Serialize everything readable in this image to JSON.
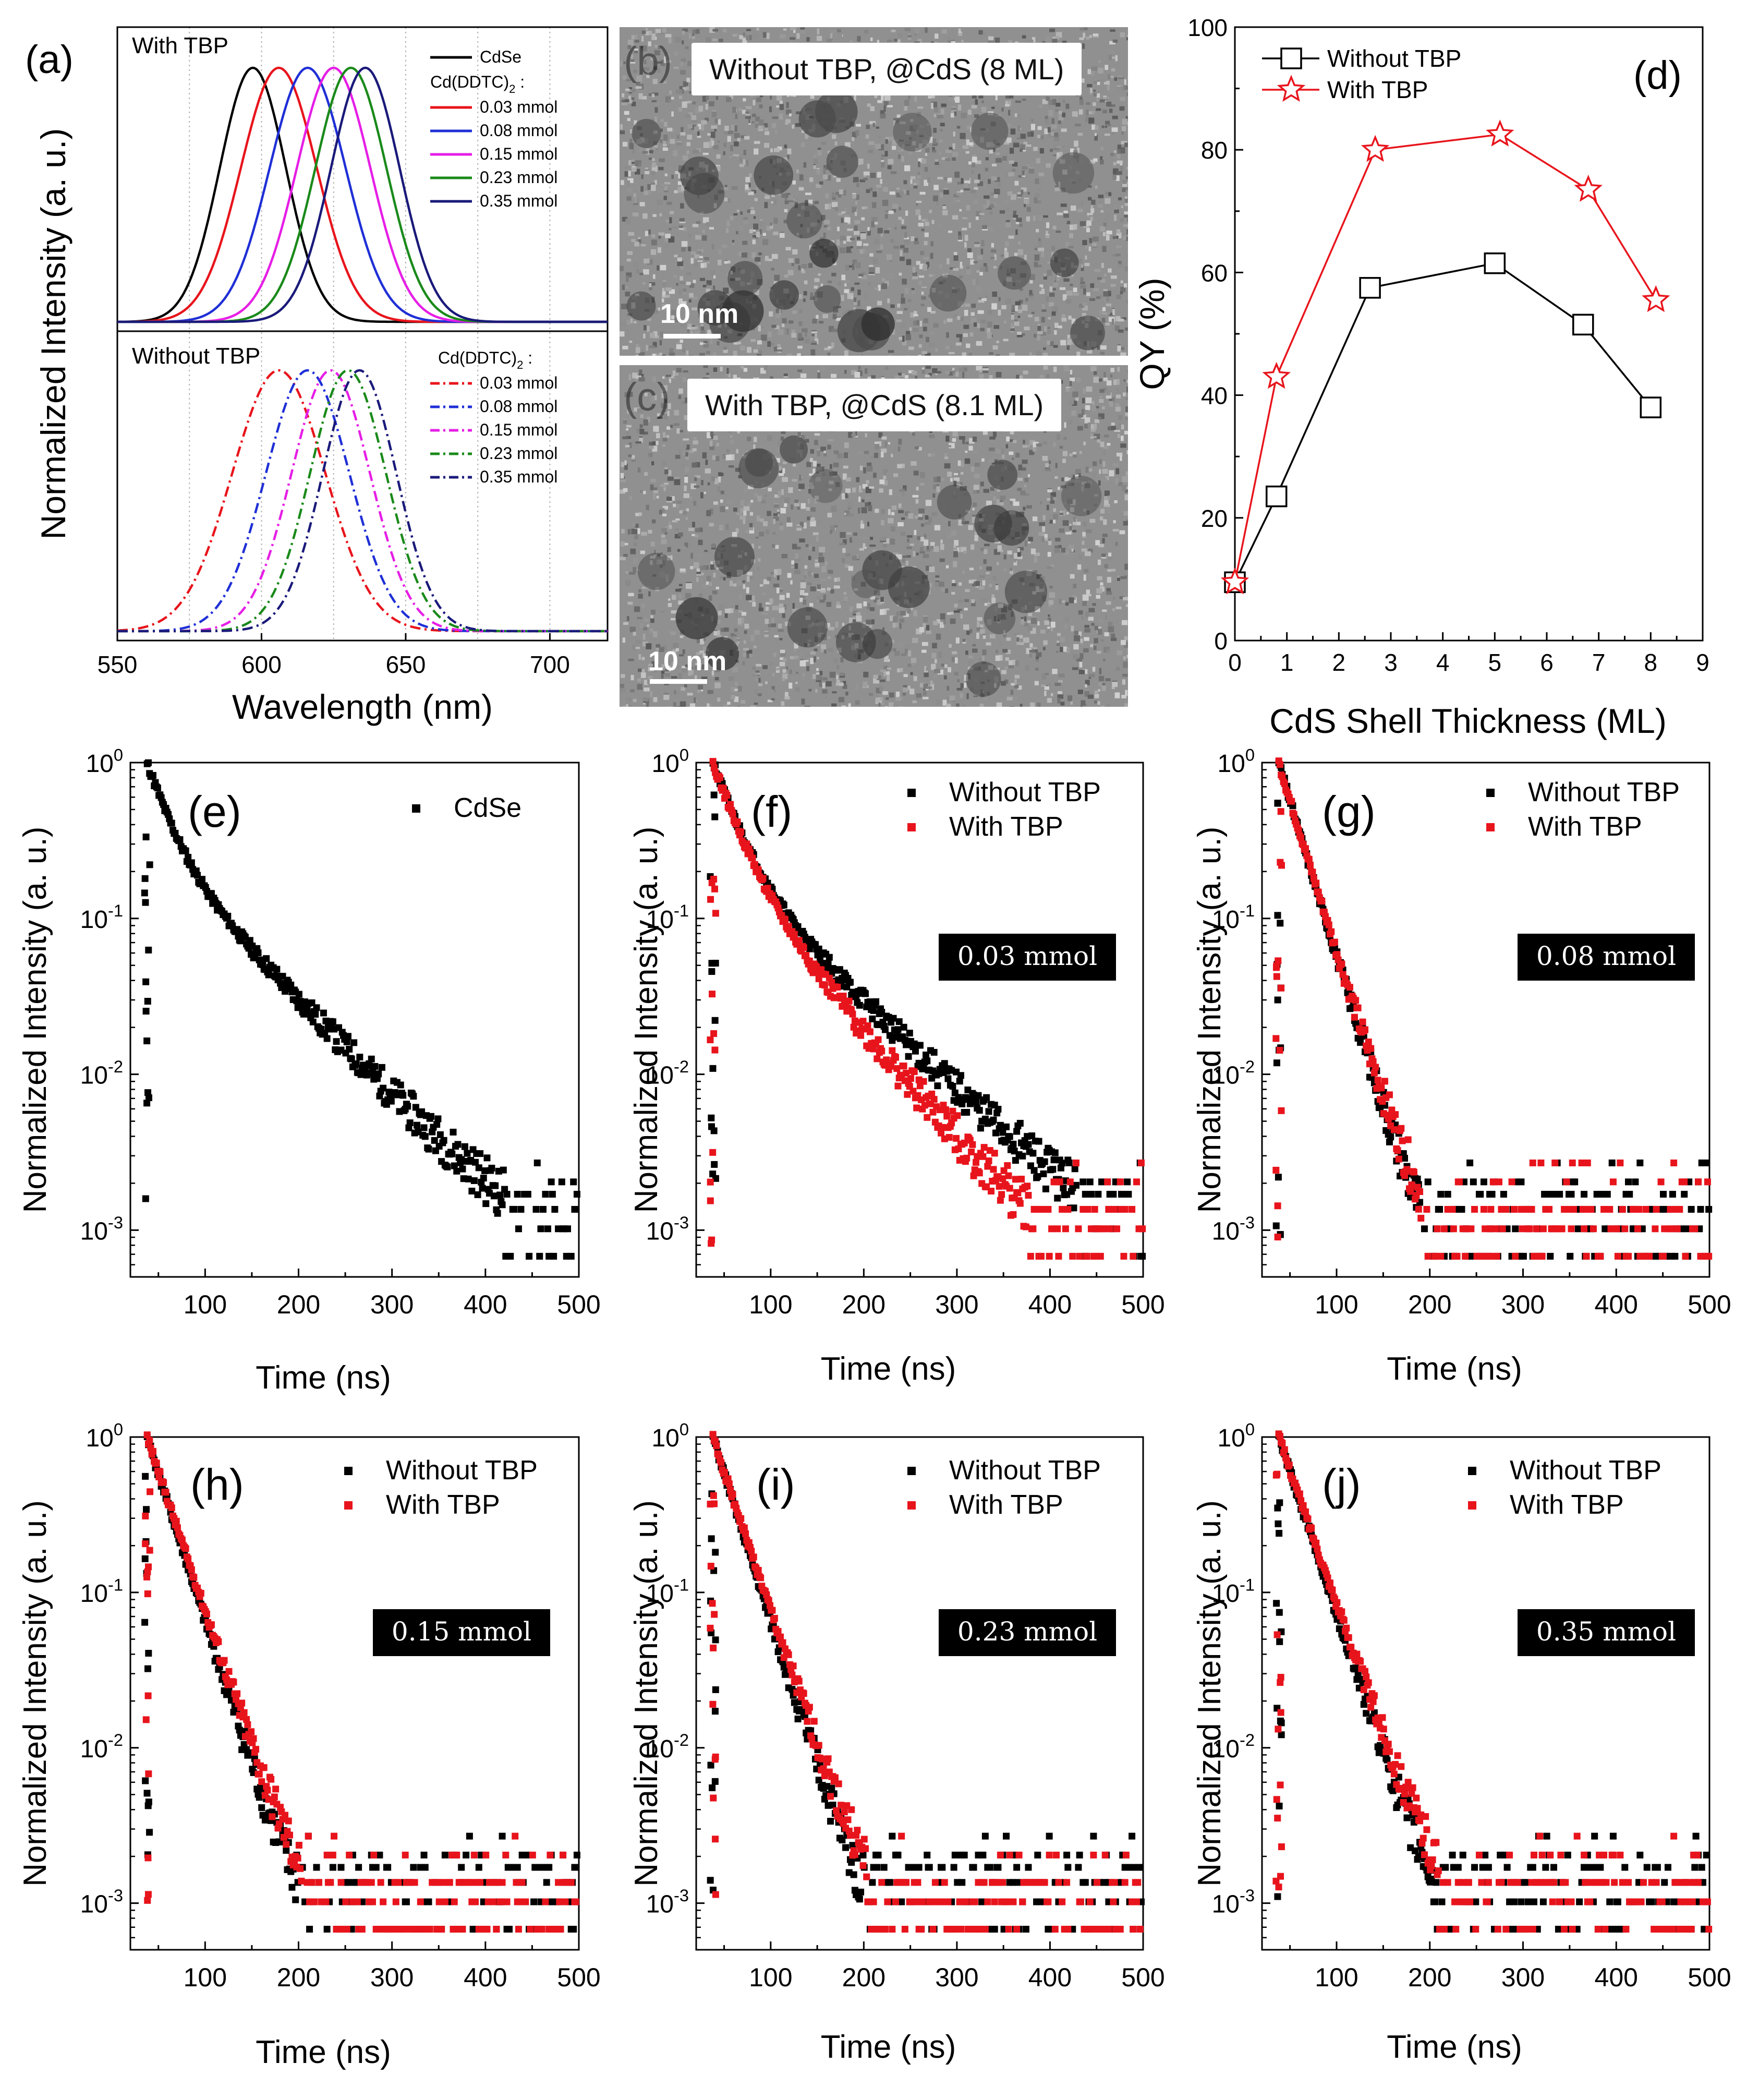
{
  "panels": {
    "b": {
      "letter": "(b)",
      "caption": "Without TBP, @CdS (8 ML)",
      "scale_bar": "10 nm"
    },
    "c": {
      "letter": "(c)",
      "caption": "With TBP, @CdS (8.1 ML)",
      "scale_bar": "10 nm"
    }
  },
  "colors": {
    "cdse": "#000000",
    "c003": "#e8141c",
    "c008": "#1f2fd6",
    "c015": "#e61ee6",
    "c023": "#1a8a1a",
    "c035": "#1a1a7a",
    "without": "#000000",
    "with": "#e8141c"
  },
  "chart_data": [
    {
      "id": "a",
      "type": "line",
      "panel_label": "(a)",
      "ylabel": "Normalized Intensity (a. u.)",
      "xlabel": "Wavelength (nm)",
      "xlim": [
        550,
        720
      ],
      "xticks": [
        550,
        600,
        650,
        700
      ],
      "subplots": [
        {
          "label": "With TBP",
          "legend_header": "Cd(DDTC)",
          "legend_header_sub": "2",
          "legend_header_suffix": " :",
          "series": [
            {
              "name": "CdSe",
              "peak": 597,
              "fwhm": 27,
              "style": "solid",
              "color_key": "cdse",
              "in_legend_top": true
            },
            {
              "name": "0.03 mmol",
              "peak": 606,
              "fwhm": 31,
              "style": "solid",
              "color_key": "c003"
            },
            {
              "name": "0.08 mmol",
              "peak": 616,
              "fwhm": 31,
              "style": "solid",
              "color_key": "c008"
            },
            {
              "name": "0.15 mmol",
              "peak": 625,
              "fwhm": 30,
              "style": "solid",
              "color_key": "c015"
            },
            {
              "name": "0.23 mmol",
              "peak": 631,
              "fwhm": 29,
              "style": "solid",
              "color_key": "c023"
            },
            {
              "name": "0.35 mmol",
              "peak": 636,
              "fwhm": 28,
              "style": "solid",
              "color_key": "c035"
            }
          ]
        },
        {
          "label": "Without TBP",
          "legend_header": "Cd(DDTC)",
          "legend_header_sub": "2",
          "legend_header_suffix": " :",
          "series": [
            {
              "name": "0.03 mmol",
              "peak": 606,
              "fwhm": 38,
              "style": "dashdot",
              "color_key": "c003"
            },
            {
              "name": "0.08 mmol",
              "peak": 616,
              "fwhm": 34,
              "style": "dashdot",
              "color_key": "c008"
            },
            {
              "name": "0.15 mmol",
              "peak": 624,
              "fwhm": 32,
              "style": "dashdot",
              "color_key": "c015"
            },
            {
              "name": "0.23 mmol",
              "peak": 630,
              "fwhm": 31,
              "style": "dashdot",
              "color_key": "c023"
            },
            {
              "name": "0.35 mmol",
              "peak": 634,
              "fwhm": 30,
              "style": "dashdot",
              "color_key": "c035"
            }
          ]
        }
      ]
    },
    {
      "id": "d",
      "type": "line",
      "panel_label": "(d)",
      "xlabel": "CdS Shell Thickness (ML)",
      "ylabel": "QY (%)",
      "xlim": [
        0,
        9
      ],
      "ylim": [
        0,
        100
      ],
      "xticks": [
        0,
        1,
        2,
        3,
        4,
        5,
        6,
        7,
        8,
        9
      ],
      "yticks": [
        0,
        20,
        40,
        60,
        80,
        100
      ],
      "series": [
        {
          "name": "Without TBP",
          "marker": "square",
          "color_key": "without",
          "x": [
            0,
            0.8,
            2.6,
            5.0,
            6.7,
            8.0
          ],
          "y": [
            9.5,
            23.5,
            57.5,
            61.5,
            51.5,
            38.0
          ]
        },
        {
          "name": "With TBP",
          "marker": "star",
          "color_key": "with",
          "x": [
            0,
            0.8,
            2.7,
            5.1,
            6.8,
            8.1
          ],
          "y": [
            9.5,
            43.0,
            80.0,
            82.5,
            73.5,
            55.5
          ]
        }
      ]
    },
    {
      "id": "e",
      "type": "scatter",
      "panel_label": "(e)",
      "xlabel": "Time (ns)",
      "ylabel": "Normalized Intensity (a. u.)",
      "xlim": [
        20,
        500
      ],
      "ylim_log10": [
        -3.3,
        0
      ],
      "xticks": [
        100,
        200,
        300,
        400,
        500
      ],
      "yticks": [
        {
          "base": "10",
          "exp": "0",
          "v": 0
        },
        {
          "base": "10",
          "exp": "-1",
          "v": -1
        },
        {
          "base": "10",
          "exp": "-2",
          "v": -2
        },
        {
          "base": "10",
          "exp": "-3",
          "v": -3
        }
      ],
      "box_label": "",
      "series": [
        {
          "name": "CdSe",
          "color_key": "without",
          "tau1": 20,
          "tau2": 70,
          "a1": 0.7,
          "floor": 0.0012,
          "seed": 11
        }
      ]
    },
    {
      "id": "f",
      "type": "scatter",
      "panel_label": "(f)",
      "xlabel": "Time (ns)",
      "ylabel": "Normalized Intensity (a. u.)",
      "xlim": [
        20,
        500
      ],
      "ylim_log10": [
        -3.3,
        0
      ],
      "xticks": [
        100,
        200,
        300,
        400,
        500
      ],
      "yticks": [
        {
          "base": "10",
          "exp": "0",
          "v": 0
        },
        {
          "base": "10",
          "exp": "-1",
          "v": -1
        },
        {
          "base": "10",
          "exp": "-2",
          "v": -2
        },
        {
          "base": "10",
          "exp": "-3",
          "v": -3
        }
      ],
      "box_label": "0.03 mmol",
      "series": [
        {
          "name": "Without TBP",
          "color_key": "without",
          "tau1": 22,
          "tau2": 75,
          "a1": 0.75,
          "floor": 0.0013,
          "seed": 21
        },
        {
          "name": "With TBP",
          "color_key": "with",
          "tau1": 22,
          "tau2": 62,
          "a1": 0.75,
          "floor": 0.001,
          "seed": 22
        }
      ]
    },
    {
      "id": "g",
      "type": "scatter",
      "panel_label": "(g)",
      "xlabel": "Time (ns)",
      "ylabel": "Normalized Intensity (a. u.)",
      "xlim": [
        20,
        500
      ],
      "ylim_log10": [
        -3.3,
        0
      ],
      "xticks": [
        100,
        200,
        300,
        400,
        500
      ],
      "yticks": [
        {
          "base": "10",
          "exp": "0",
          "v": 0
        },
        {
          "base": "10",
          "exp": "-1",
          "v": -1
        },
        {
          "base": "10",
          "exp": "-2",
          "v": -2
        },
        {
          "base": "10",
          "exp": "-3",
          "v": -3
        }
      ],
      "box_label": "0.08 mmol",
      "series": [
        {
          "name": "Without TBP",
          "color_key": "without",
          "tau1": 19,
          "tau2": 24,
          "a1": 0.5,
          "floor": 0.001,
          "seed": 31
        },
        {
          "name": "With TBP",
          "color_key": "with",
          "tau1": 19,
          "tau2": 25,
          "a1": 0.5,
          "floor": 0.0012,
          "seed": 32
        }
      ]
    },
    {
      "id": "h",
      "type": "scatter",
      "panel_label": "(h)",
      "xlabel": "Time (ns)",
      "ylabel": "Normalized Intensity (a. u.)",
      "xlim": [
        20,
        500
      ],
      "ylim_log10": [
        -3.3,
        0
      ],
      "xticks": [
        100,
        200,
        300,
        400,
        500
      ],
      "yticks": [
        {
          "base": "10",
          "exp": "0",
          "v": 0
        },
        {
          "base": "10",
          "exp": "-1",
          "v": -1
        },
        {
          "base": "10",
          "exp": "-2",
          "v": -2
        },
        {
          "base": "10",
          "exp": "-3",
          "v": -3
        }
      ],
      "box_label": "0.15 mmol",
      "series": [
        {
          "name": "Without TBP",
          "color_key": "without",
          "tau1": 20,
          "tau2": 25,
          "a1": 0.5,
          "floor": 0.001,
          "seed": 41
        },
        {
          "name": "With TBP",
          "color_key": "with",
          "tau1": 21,
          "tau2": 27,
          "a1": 0.5,
          "floor": 0.0012,
          "seed": 42
        }
      ]
    },
    {
      "id": "i",
      "type": "scatter",
      "panel_label": "(i)",
      "xlabel": "Time (ns)",
      "ylabel": "Normalized Intensity (a. u.)",
      "xlim": [
        20,
        500
      ],
      "ylim_log10": [
        -3.3,
        0
      ],
      "xticks": [
        100,
        200,
        300,
        400,
        500
      ],
      "yticks": [
        {
          "base": "10",
          "exp": "0",
          "v": 0
        },
        {
          "base": "10",
          "exp": "-1",
          "v": -1
        },
        {
          "base": "10",
          "exp": "-2",
          "v": -2
        },
        {
          "base": "10",
          "exp": "-3",
          "v": -3
        }
      ],
      "box_label": "0.23 mmol",
      "series": [
        {
          "name": "Without TBP",
          "color_key": "without",
          "tau1": 20,
          "tau2": 25,
          "a1": 0.5,
          "floor": 0.001,
          "seed": 51
        },
        {
          "name": "With TBP",
          "color_key": "with",
          "tau1": 21,
          "tau2": 27,
          "a1": 0.5,
          "floor": 0.0012,
          "seed": 52
        }
      ]
    },
    {
      "id": "j",
      "type": "scatter",
      "panel_label": "(j)",
      "xlabel": "Time (ns)",
      "ylabel": "Normalized Intensity (a. u.)",
      "xlim": [
        20,
        500
      ],
      "ylim_log10": [
        -3.3,
        0
      ],
      "xticks": [
        100,
        200,
        300,
        400,
        500
      ],
      "yticks": [
        {
          "base": "10",
          "exp": "0",
          "v": 0
        },
        {
          "base": "10",
          "exp": "-1",
          "v": -1
        },
        {
          "base": "10",
          "exp": "-2",
          "v": -2
        },
        {
          "base": "10",
          "exp": "-3",
          "v": -3
        }
      ],
      "box_label": "0.35 mmol",
      "series": [
        {
          "name": "Without TBP",
          "color_key": "without",
          "tau1": 21,
          "tau2": 26,
          "a1": 0.5,
          "floor": 0.001,
          "seed": 61
        },
        {
          "name": "With TBP",
          "color_key": "with",
          "tau1": 22,
          "tau2": 28,
          "a1": 0.5,
          "floor": 0.0012,
          "seed": 62
        }
      ]
    }
  ]
}
